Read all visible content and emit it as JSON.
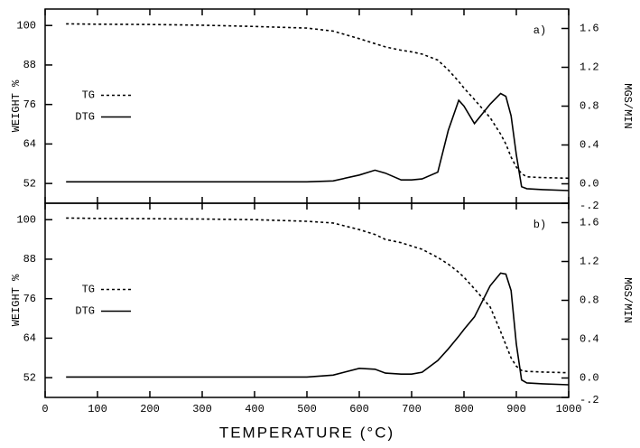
{
  "chart_data": [
    {
      "type": "line",
      "annotation": "a)",
      "ylabel": "WEIGHT %",
      "y2label": "MGS/MIN",
      "legend": "center left",
      "xlim": [
        0,
        1000
      ],
      "xticks": [
        0,
        100,
        200,
        300,
        400,
        500,
        600,
        700,
        800,
        900,
        1000
      ],
      "ylim": [
        46,
        105
      ],
      "yticks": [
        52,
        64,
        76,
        88,
        100
      ],
      "y2lim": [
        -0.2,
        1.8
      ],
      "y2ticks": [
        {
          "value": -0.2,
          "label": "-.2"
        },
        {
          "value": 0,
          "label": "0.0"
        },
        0.4,
        0.8,
        1.2,
        1.6
      ],
      "x": [
        40,
        100,
        200,
        300,
        400,
        500,
        550,
        600,
        630,
        650,
        680,
        700,
        720,
        750,
        770,
        790,
        800,
        820,
        850,
        870,
        880,
        890,
        900,
        910,
        920,
        950,
        1000
      ],
      "series": [
        {
          "name": "TG",
          "color": "#000000",
          "linestyle": "dashed",
          "axis": "y",
          "values": [
            100.5,
            100.4,
            100.3,
            100.1,
            99.7,
            99.2,
            98.3,
            96,
            94.5,
            93.5,
            92.5,
            92,
            91.3,
            89.5,
            86.5,
            83,
            81,
            77.5,
            72,
            67,
            64,
            60,
            57,
            55,
            54,
            53.8,
            53.6
          ]
        },
        {
          "name": "DTG",
          "color": "#000000",
          "linestyle": "solid",
          "axis": "y2",
          "values": [
            0.02,
            0.02,
            0.02,
            0.02,
            0.02,
            0.02,
            0.03,
            0.09,
            0.14,
            0.11,
            0.04,
            0.04,
            0.05,
            0.12,
            0.55,
            0.86,
            0.8,
            0.62,
            0.82,
            0.93,
            0.9,
            0.7,
            0.3,
            -0.03,
            -0.05,
            -0.06,
            -0.07
          ]
        }
      ]
    },
    {
      "type": "line",
      "annotation": "b)",
      "ylabel": "WEIGHT %",
      "y2label": "MGS/MIN",
      "xlabel": "TEMPERATURE (°C)",
      "legend": "center left",
      "xlim": [
        0,
        1000
      ],
      "xticks": [
        0,
        100,
        200,
        300,
        400,
        500,
        600,
        700,
        800,
        900,
        1000
      ],
      "ylim": [
        46,
        105
      ],
      "yticks": [
        52,
        64,
        76,
        88,
        100
      ],
      "y2lim": [
        -0.2,
        1.8
      ],
      "y2ticks": [
        {
          "value": -0.2,
          "label": "-.2"
        },
        {
          "value": 0,
          "label": "0.0"
        },
        0.4,
        0.8,
        1.2,
        1.6
      ],
      "x": [
        40,
        100,
        200,
        300,
        400,
        500,
        550,
        600,
        630,
        650,
        680,
        700,
        720,
        750,
        770,
        790,
        800,
        820,
        850,
        870,
        880,
        890,
        900,
        910,
        920,
        950,
        1000
      ],
      "series": [
        {
          "name": "TG",
          "color": "#000000",
          "linestyle": "dashed",
          "axis": "y",
          "values": [
            100.5,
            100.4,
            100.3,
            100.2,
            100,
            99.5,
            99,
            97,
            95.5,
            94,
            93,
            92,
            91,
            88.5,
            86.5,
            84,
            82.5,
            79,
            73.5,
            66,
            62,
            58,
            55.5,
            54.2,
            53.9,
            53.7,
            53.5
          ]
        },
        {
          "name": "DTG",
          "color": "#000000",
          "linestyle": "solid",
          "axis": "y2",
          "values": [
            0.01,
            0.01,
            0.01,
            0.01,
            0.01,
            0.01,
            0.03,
            0.1,
            0.09,
            0.05,
            0.04,
            0.04,
            0.06,
            0.18,
            0.3,
            0.43,
            0.5,
            0.63,
            0.95,
            1.08,
            1.07,
            0.9,
            0.35,
            -0.02,
            -0.05,
            -0.06,
            -0.07
          ]
        }
      ]
    }
  ]
}
